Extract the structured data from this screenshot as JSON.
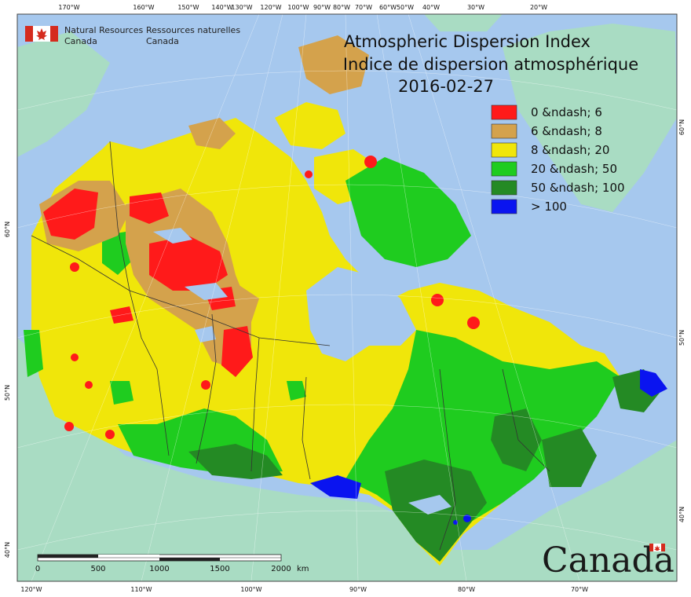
{
  "header": {
    "org_en_1": "Natural Resources",
    "org_en_2": "Canada",
    "org_fr_1": "Ressources naturelles",
    "org_fr_2": "Canada"
  },
  "title": {
    "line1": "Atmospheric Dispersion Index",
    "line2": "Indice de dispersion atmosphérique",
    "date": "2016-02-27"
  },
  "legend": {
    "items": [
      {
        "label": "0 &ndash; 6",
        "color": "#ff1a1a"
      },
      {
        "label": "6 &ndash; 8",
        "color": "#d4a24c"
      },
      {
        "label": "8 &ndash; 20",
        "color": "#f0e60a"
      },
      {
        "label": "20 &ndash; 50",
        "color": "#1fcc1f"
      },
      {
        "label": "50 &ndash; 100",
        "color": "#248a24"
      },
      {
        "label": "> 100",
        "color": "#0a14f0"
      }
    ]
  },
  "graticule": {
    "top": [
      "170°W",
      "160°W",
      "150°W",
      "140°W",
      "130°W",
      "120°W",
      "100°W",
      "90°W",
      "80°W",
      "70°W",
      "60°W",
      "50°W",
      "40°W",
      "30°W",
      "20°W"
    ],
    "bottom": [
      "120°W",
      "110°W",
      "100°W",
      "90°W",
      "80°W",
      "70°W"
    ],
    "left": [
      "60°N",
      "50°N",
      "40°N"
    ],
    "right": [
      "60°N",
      "50°N",
      "40°N"
    ]
  },
  "scale_bar": {
    "ticks": [
      "0",
      "500",
      "1000",
      "1500",
      "2000"
    ],
    "unit": "km"
  },
  "wordmark": "Canada",
  "colors": {
    "ocean": "#a6c8ee",
    "land_other": "#a9dcc3",
    "border": "#333333"
  }
}
